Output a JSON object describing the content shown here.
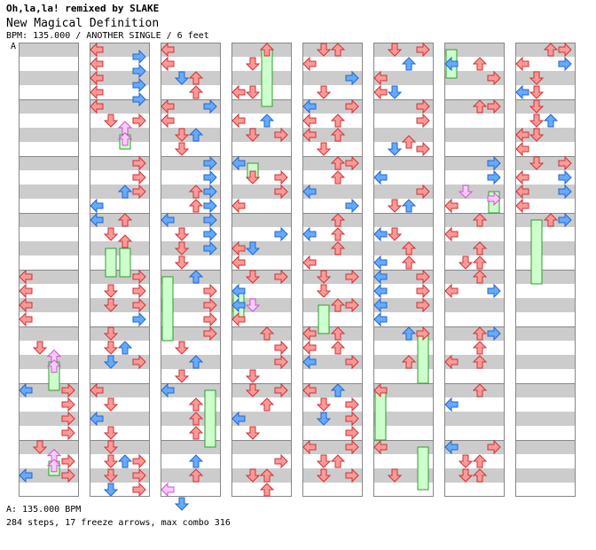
{
  "header": {
    "song_title": "Oh,la,la! remixed by SLAKE",
    "chart_name": "New Magical Definition",
    "chart_info": "BPM: 135.000 / ANOTHER SINGLE / 6 feet"
  },
  "section_marker": "A",
  "footer": {
    "bpm_line": "A: 135.000 BPM",
    "stats_line": "284 steps, 17 freeze arrows, max combo 316"
  },
  "colors": {
    "stripe": "#cccccc",
    "background": "#ffffff",
    "border": "#999999",
    "arrow_red": "#ff9999",
    "arrow_red_edge": "#cc3333",
    "arrow_blue": "#66aaff",
    "arrow_blue_edge": "#2266cc",
    "arrow_pink": "#ffccff",
    "arrow_pink_edge": "#cc55cc",
    "freeze": "#ccffcc",
    "freeze_edge": "#339933"
  },
  "chart_data": {
    "type": "step-chart",
    "columns_count": 8,
    "measures_per_column": 8,
    "lanes": [
      "left",
      "down",
      "up",
      "right"
    ],
    "freeze_count": 17,
    "steps": 284,
    "max_combo": 316
  }
}
